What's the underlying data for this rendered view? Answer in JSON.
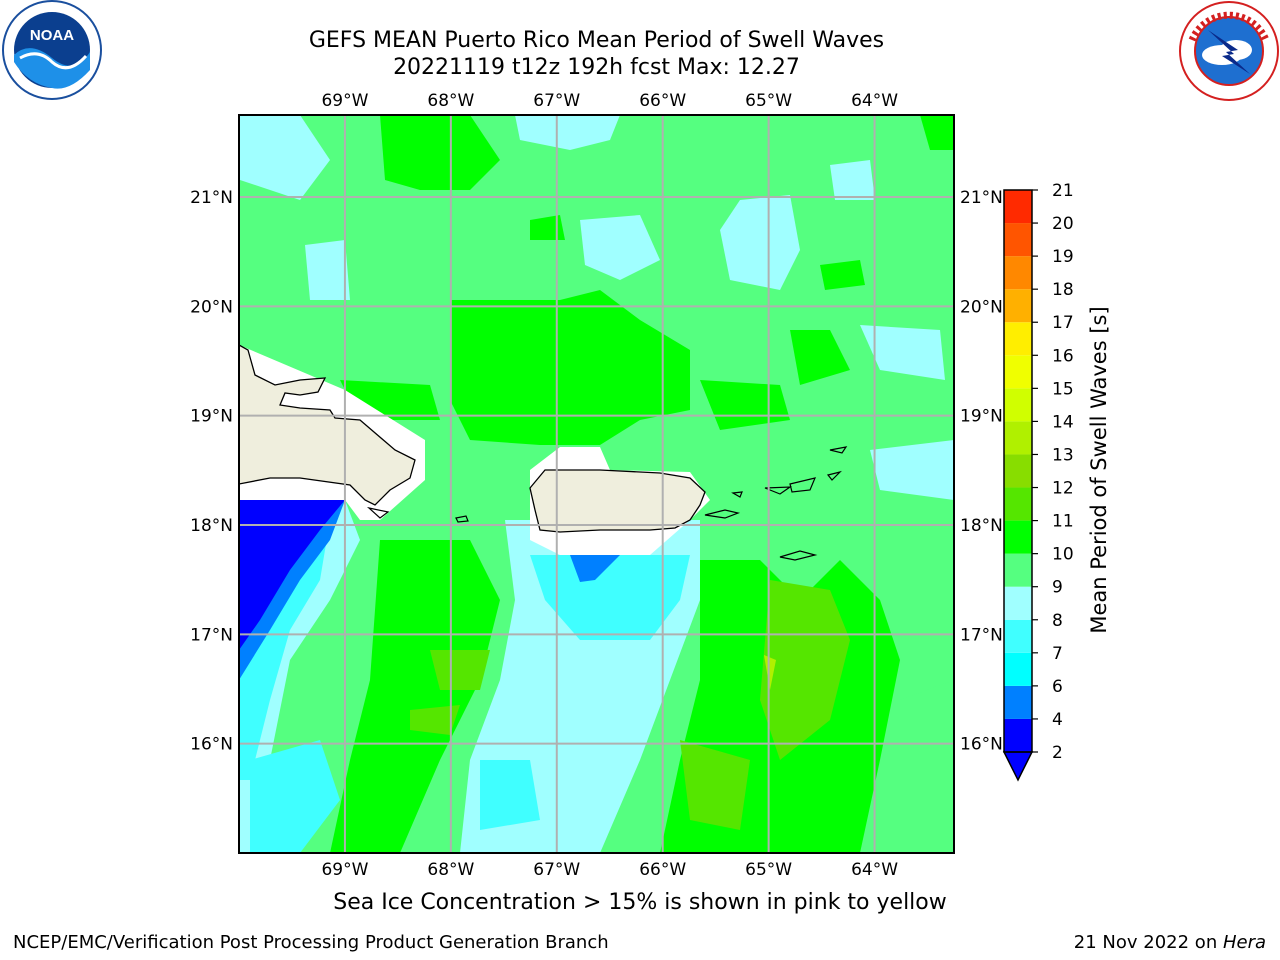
{
  "title_line1": "GEFS MEAN Puerto Rico Mean Period of Swell Waves",
  "title_line2": "20221119 t12z 192h fcst   Max: 12.27",
  "logos": {
    "left": "NOAA",
    "right": "NATIONAL WEATHER SERVICE"
  },
  "map": {
    "lon_labels": [
      "69°W",
      "68°W",
      "67°W",
      "66°W",
      "65°W",
      "64°W"
    ],
    "lat_labels": [
      "21°N",
      "20°N",
      "19°N",
      "18°N",
      "17°N",
      "16°N"
    ],
    "lon_range": [
      -70.0,
      -63.25
    ],
    "lat_range": [
      15.0,
      21.75
    ],
    "gridlines": true
  },
  "colorbar": {
    "label": "Mean Period of Swell Waves [s]",
    "ticks": [
      "2",
      "4",
      "6",
      "7",
      "8",
      "9",
      "10",
      "11",
      "12",
      "13",
      "14",
      "15",
      "16",
      "17",
      "18",
      "19",
      "20",
      "21"
    ],
    "colors": [
      "#0000ff",
      "#0080ff",
      "#00ffff",
      "#40ffff",
      "#a0ffff",
      "#55ff80",
      "#00ff00",
      "#55e600",
      "#88dd00",
      "#b0f000",
      "#d0ff00",
      "#f0ff00",
      "#ffee00",
      "#ffb000",
      "#ff8800",
      "#ff5500",
      "#ff2a00",
      "#ff0000"
    ],
    "extend": "min"
  },
  "subnote": "Sea Ice Concentration > 15% is shown in pink to yellow",
  "footer_left": "NCEP/EMC/Verification Post Processing Product Generation Branch",
  "footer_right_date": "21 Nov 2022 on ",
  "footer_right_host": "Hera"
}
